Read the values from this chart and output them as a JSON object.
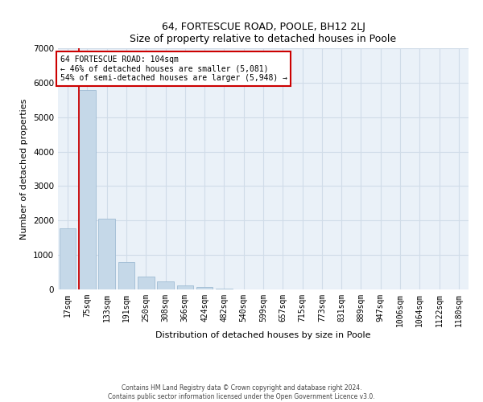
{
  "title": "64, FORTESCUE ROAD, POOLE, BH12 2LJ",
  "subtitle": "Size of property relative to detached houses in Poole",
  "xlabel": "Distribution of detached houses by size in Poole",
  "ylabel": "Number of detached properties",
  "bar_labels": [
    "17sqm",
    "75sqm",
    "133sqm",
    "191sqm",
    "250sqm",
    "308sqm",
    "366sqm",
    "424sqm",
    "482sqm",
    "540sqm",
    "599sqm",
    "657sqm",
    "715sqm",
    "773sqm",
    "831sqm",
    "889sqm",
    "947sqm",
    "1006sqm",
    "1064sqm",
    "1122sqm",
    "1180sqm"
  ],
  "bar_values": [
    1780,
    5780,
    2060,
    800,
    370,
    230,
    110,
    60,
    25,
    0,
    0,
    0,
    0,
    0,
    0,
    0,
    0,
    0,
    0,
    0,
    0
  ],
  "bar_color": "#c5d8e8",
  "bar_edge_color": "#a0bcd4",
  "property_line_label": "64 FORTESCUE ROAD: 104sqm",
  "annotation_line1": "← 46% of detached houses are smaller (5,081)",
  "annotation_line2": "54% of semi-detached houses are larger (5,948) →",
  "annotation_box_color": "#ffffff",
  "annotation_box_edge_color": "#cc0000",
  "vline_color": "#cc0000",
  "vline_x_index": 0.575,
  "ylim": [
    0,
    7000
  ],
  "yticks": [
    0,
    1000,
    2000,
    3000,
    4000,
    5000,
    6000,
    7000
  ],
  "footer_line1": "Contains HM Land Registry data © Crown copyright and database right 2024.",
  "footer_line2": "Contains public sector information licensed under the Open Government Licence v3.0.",
  "grid_color": "#d0dce8",
  "background_color": "#eaf1f8",
  "title_fontsize": 9,
  "xlabel_fontsize": 8,
  "ylabel_fontsize": 8,
  "tick_fontsize": 7,
  "ann_fontsize": 7
}
